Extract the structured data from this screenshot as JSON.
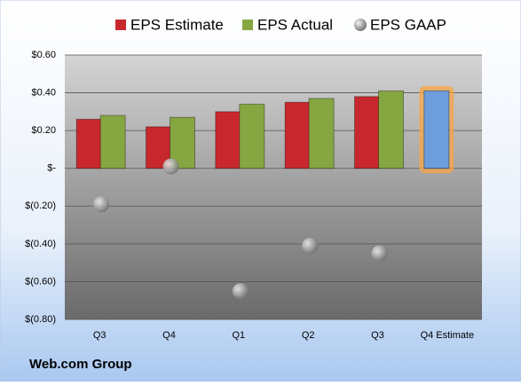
{
  "chart_data": {
    "type": "bar",
    "categories": [
      "Q3",
      "Q4",
      "Q1",
      "Q2",
      "Q3",
      "Q4 Estimate"
    ],
    "series": [
      {
        "name": "EPS Estimate",
        "color": "#c8282d",
        "values": [
          0.26,
          0.22,
          0.3,
          0.35,
          0.38,
          0.41
        ]
      },
      {
        "name": "EPS Actual",
        "color": "#86a642",
        "values": [
          0.28,
          0.27,
          0.34,
          0.37,
          0.41,
          null
        ]
      },
      {
        "name": "EPS GAAP",
        "color": "#a8a8a8",
        "marker": "circle",
        "values": [
          -0.19,
          0.01,
          -0.65,
          -0.41,
          -0.45,
          null
        ]
      }
    ],
    "highlight": {
      "index": 5,
      "color": "#6d9ddc",
      "glow": "#f5a54a"
    },
    "ylim": [
      -0.8,
      0.6
    ],
    "yticks": [
      {
        "value": 0.6,
        "label": "$0.60"
      },
      {
        "value": 0.4,
        "label": "$0.40"
      },
      {
        "value": 0.2,
        "label": "$0.20"
      },
      {
        "value": 0,
        "label": "$-"
      },
      {
        "value": -0.2,
        "label": "$(0.20)"
      },
      {
        "value": -0.4,
        "label": "$(0.40)"
      },
      {
        "value": -0.6,
        "label": "$(0.60)"
      },
      {
        "value": -0.8,
        "label": "$(0.80)"
      }
    ],
    "grid": true,
    "legend": "top",
    "footer": "Web.com Group"
  }
}
